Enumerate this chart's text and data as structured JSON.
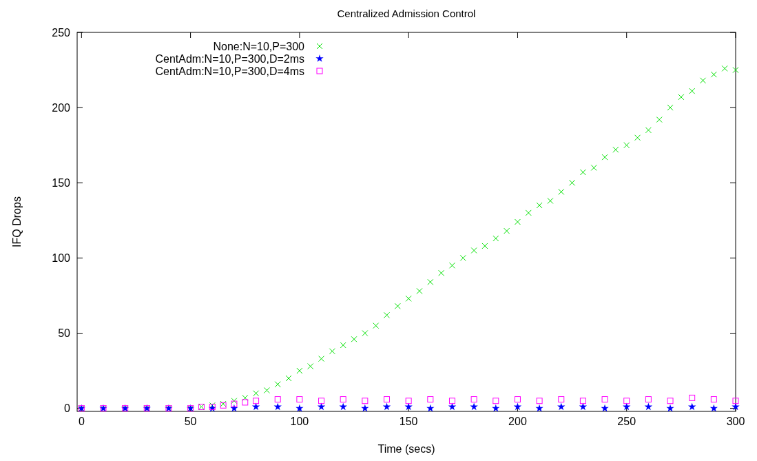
{
  "chart_data": {
    "type": "scatter",
    "title": "Centralized Admission Control",
    "xlabel": "Time (secs)",
    "ylabel": "IFQ Drops",
    "xlim": [
      -2,
      300
    ],
    "ylim": [
      -2,
      250
    ],
    "xticks": [
      0,
      50,
      100,
      150,
      200,
      250,
      300
    ],
    "yticks": [
      0,
      50,
      100,
      150,
      200,
      250
    ],
    "grid": false,
    "legend": "top left",
    "series": [
      {
        "name": "None:N=10,P=300",
        "color": "#00e000",
        "marker": "cross",
        "x": [
          0,
          10,
          20,
          30,
          40,
          50,
          55,
          60,
          65,
          70,
          75,
          80,
          85,
          90,
          95,
          100,
          105,
          110,
          115,
          120,
          125,
          130,
          135,
          140,
          145,
          150,
          155,
          160,
          165,
          170,
          175,
          180,
          185,
          190,
          195,
          200,
          205,
          210,
          215,
          220,
          225,
          230,
          235,
          240,
          245,
          250,
          255,
          260,
          265,
          270,
          275,
          280,
          285,
          290,
          295,
          300
        ],
        "values": [
          0,
          0,
          0,
          0,
          0,
          0,
          1,
          2,
          3,
          5,
          7,
          10,
          12,
          16,
          20,
          25,
          28,
          33,
          38,
          42,
          46,
          50,
          55,
          62,
          68,
          73,
          78,
          84,
          90,
          95,
          100,
          105,
          108,
          113,
          118,
          124,
          130,
          135,
          138,
          144,
          150,
          157,
          160,
          167,
          172,
          175,
          180,
          185,
          192,
          200,
          207,
          211,
          218,
          222,
          226,
          225
        ]
      },
      {
        "name": "CentAdm:N=10,P=300,D=2ms",
        "color": "#0000ff",
        "marker": "star",
        "x": [
          0,
          10,
          20,
          30,
          40,
          50,
          60,
          70,
          80,
          90,
          100,
          110,
          120,
          130,
          140,
          150,
          160,
          170,
          180,
          190,
          200,
          210,
          220,
          230,
          240,
          250,
          260,
          270,
          280,
          290,
          300
        ],
        "values": [
          0,
          0,
          0,
          0,
          0,
          0,
          0,
          0,
          1,
          1,
          0,
          1,
          1,
          0,
          1,
          1,
          0,
          1,
          1,
          0,
          1,
          0,
          1,
          1,
          0,
          1,
          1,
          0,
          1,
          0,
          1
        ]
      },
      {
        "name": "CentAdm:N=10,P=300,D=4ms",
        "color": "#ff00ff",
        "marker": "square",
        "x": [
          0,
          10,
          20,
          30,
          40,
          50,
          55,
          60,
          65,
          70,
          75,
          80,
          90,
          100,
          110,
          120,
          130,
          140,
          150,
          160,
          170,
          180,
          190,
          200,
          210,
          220,
          230,
          240,
          250,
          260,
          270,
          280,
          290,
          300
        ],
        "values": [
          0,
          0,
          0,
          0,
          0,
          0,
          1,
          1,
          2,
          3,
          4,
          5,
          6,
          6,
          5,
          6,
          5,
          6,
          5,
          6,
          5,
          6,
          5,
          6,
          5,
          6,
          5,
          6,
          5,
          6,
          5,
          7,
          6,
          5
        ]
      }
    ]
  }
}
